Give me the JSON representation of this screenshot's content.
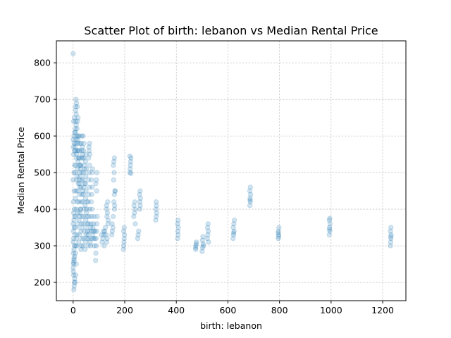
{
  "chart_data": {
    "type": "scatter",
    "title": "Scatter Plot of birth: lebanon vs Median Rental Price",
    "xlabel": "birth: lebanon",
    "ylabel": "Median Rental Price",
    "xlim": [
      -65,
      1290
    ],
    "ylim": [
      150,
      860
    ],
    "xticks": [
      0,
      200,
      400,
      600,
      800,
      1000,
      1200
    ],
    "yticks": [
      200,
      300,
      400,
      500,
      600,
      700,
      800
    ],
    "xtick_labels": [
      "0",
      "200",
      "400",
      "600",
      "800",
      "1000",
      "1200"
    ],
    "ytick_labels": [
      "200",
      "300",
      "400",
      "500",
      "600",
      "700",
      "800"
    ],
    "grid": true,
    "marker_color": "#1f77b4",
    "marker_alpha": 0.2,
    "points": [
      [
        0,
        825
      ],
      [
        3,
        180
      ],
      [
        4,
        190
      ],
      [
        5,
        200
      ],
      [
        6,
        210
      ],
      [
        2,
        220
      ],
      [
        1,
        230
      ],
      [
        0,
        240
      ],
      [
        2,
        250
      ],
      [
        4,
        260
      ],
      [
        6,
        270
      ],
      [
        1,
        280
      ],
      [
        3,
        290
      ],
      [
        5,
        300
      ],
      [
        0,
        310
      ],
      [
        2,
        320
      ],
      [
        7,
        330
      ],
      [
        1,
        340
      ],
      [
        4,
        350
      ],
      [
        0,
        360
      ],
      [
        3,
        370
      ],
      [
        6,
        380
      ],
      [
        2,
        390
      ],
      [
        5,
        400
      ],
      [
        1,
        420
      ],
      [
        4,
        450
      ],
      [
        0,
        480
      ],
      [
        3,
        500
      ],
      [
        6,
        520
      ],
      [
        2,
        550
      ],
      [
        5,
        560
      ],
      [
        1,
        570
      ],
      [
        4,
        580
      ],
      [
        0,
        590
      ],
      [
        3,
        600
      ],
      [
        6,
        610
      ],
      [
        2,
        640
      ],
      [
        5,
        650
      ],
      [
        1,
        255
      ],
      [
        3,
        265
      ],
      [
        8,
        200
      ],
      [
        10,
        220
      ],
      [
        12,
        250
      ],
      [
        9,
        280
      ],
      [
        11,
        300
      ],
      [
        13,
        320
      ],
      [
        8,
        350
      ],
      [
        10,
        380
      ],
      [
        12,
        400
      ],
      [
        9,
        430
      ],
      [
        11,
        450
      ],
      [
        13,
        480
      ],
      [
        8,
        500
      ],
      [
        10,
        520
      ],
      [
        12,
        540
      ],
      [
        9,
        560
      ],
      [
        11,
        580
      ],
      [
        13,
        600
      ],
      [
        8,
        620
      ],
      [
        10,
        640
      ],
      [
        12,
        660
      ],
      [
        9,
        680
      ],
      [
        11,
        700
      ],
      [
        13,
        690
      ],
      [
        10,
        670
      ],
      [
        12,
        630
      ],
      [
        9,
        610
      ],
      [
        11,
        590
      ],
      [
        8,
        570
      ],
      [
        13,
        550
      ],
      [
        15,
        330
      ],
      [
        17,
        360
      ],
      [
        19,
        390
      ],
      [
        16,
        420
      ],
      [
        18,
        450
      ],
      [
        20,
        470
      ],
      [
        15,
        490
      ],
      [
        17,
        510
      ],
      [
        19,
        530
      ],
      [
        16,
        560
      ],
      [
        18,
        580
      ],
      [
        20,
        600
      ],
      [
        15,
        620
      ],
      [
        17,
        640
      ],
      [
        19,
        650
      ],
      [
        16,
        680
      ],
      [
        18,
        590
      ],
      [
        20,
        560
      ],
      [
        22,
        540
      ],
      [
        14,
        300
      ],
      [
        22,
        310
      ],
      [
        24,
        330
      ],
      [
        26,
        350
      ],
      [
        23,
        370
      ],
      [
        25,
        380
      ],
      [
        27,
        400
      ],
      [
        22,
        420
      ],
      [
        24,
        440
      ],
      [
        26,
        460
      ],
      [
        23,
        480
      ],
      [
        25,
        500
      ],
      [
        27,
        520
      ],
      [
        22,
        540
      ],
      [
        24,
        560
      ],
      [
        26,
        580
      ],
      [
        23,
        600
      ],
      [
        25,
        520
      ],
      [
        27,
        490
      ],
      [
        24,
        470
      ],
      [
        26,
        390
      ],
      [
        30,
        290
      ],
      [
        32,
        300
      ],
      [
        34,
        320
      ],
      [
        31,
        340
      ],
      [
        33,
        360
      ],
      [
        35,
        380
      ],
      [
        30,
        400
      ],
      [
        32,
        420
      ],
      [
        34,
        440
      ],
      [
        31,
        460
      ],
      [
        33,
        480
      ],
      [
        35,
        500
      ],
      [
        30,
        520
      ],
      [
        32,
        540
      ],
      [
        34,
        560
      ],
      [
        31,
        580
      ],
      [
        33,
        600
      ],
      [
        35,
        570
      ],
      [
        36,
        550
      ],
      [
        29,
        510
      ],
      [
        38,
        300
      ],
      [
        40,
        320
      ],
      [
        42,
        340
      ],
      [
        39,
        360
      ],
      [
        41,
        380
      ],
      [
        43,
        400
      ],
      [
        38,
        420
      ],
      [
        40,
        440
      ],
      [
        42,
        460
      ],
      [
        39,
        480
      ],
      [
        41,
        500
      ],
      [
        43,
        520
      ],
      [
        38,
        540
      ],
      [
        40,
        560
      ],
      [
        42,
        580
      ],
      [
        39,
        600
      ],
      [
        41,
        540
      ],
      [
        44,
        510
      ],
      [
        45,
        470
      ],
      [
        37,
        450
      ],
      [
        46,
        290
      ],
      [
        48,
        310
      ],
      [
        50,
        330
      ],
      [
        47,
        350
      ],
      [
        49,
        370
      ],
      [
        51,
        390
      ],
      [
        46,
        410
      ],
      [
        48,
        430
      ],
      [
        50,
        450
      ],
      [
        47,
        470
      ],
      [
        49,
        490
      ],
      [
        51,
        510
      ],
      [
        48,
        530
      ],
      [
        50,
        550
      ],
      [
        52,
        400
      ],
      [
        53,
        420
      ],
      [
        54,
        380
      ],
      [
        55,
        360
      ],
      [
        56,
        340
      ],
      [
        53,
        320
      ],
      [
        58,
        300
      ],
      [
        60,
        320
      ],
      [
        62,
        340
      ],
      [
        59,
        360
      ],
      [
        61,
        380
      ],
      [
        63,
        400
      ],
      [
        58,
        420
      ],
      [
        60,
        440
      ],
      [
        62,
        460
      ],
      [
        59,
        480
      ],
      [
        61,
        500
      ],
      [
        63,
        520
      ],
      [
        60,
        540
      ],
      [
        62,
        560
      ],
      [
        61,
        570
      ],
      [
        64,
        580
      ],
      [
        65,
        550
      ],
      [
        57,
        330
      ],
      [
        66,
        310
      ],
      [
        67,
        350
      ],
      [
        68,
        300
      ],
      [
        70,
        320
      ],
      [
        72,
        340
      ],
      [
        69,
        360
      ],
      [
        71,
        380
      ],
      [
        73,
        400
      ],
      [
        70,
        420
      ],
      [
        72,
        440
      ],
      [
        74,
        460
      ],
      [
        71,
        480
      ],
      [
        73,
        500
      ],
      [
        75,
        510
      ],
      [
        76,
        330
      ],
      [
        78,
        320
      ],
      [
        80,
        340
      ],
      [
        77,
        350
      ],
      [
        79,
        360
      ],
      [
        81,
        380
      ],
      [
        82,
        300
      ],
      [
        84,
        320
      ],
      [
        85,
        340
      ],
      [
        87,
        260
      ],
      [
        88,
        280
      ],
      [
        90,
        300
      ],
      [
        89,
        320
      ],
      [
        91,
        340
      ],
      [
        92,
        360
      ],
      [
        93,
        380
      ],
      [
        90,
        480
      ],
      [
        92,
        500
      ],
      [
        91,
        450
      ],
      [
        88,
        470
      ],
      [
        110,
        330
      ],
      [
        112,
        310
      ],
      [
        115,
        320
      ],
      [
        118,
        340
      ],
      [
        120,
        330
      ],
      [
        122,
        340
      ],
      [
        125,
        350
      ],
      [
        120,
        300
      ],
      [
        130,
        310
      ],
      [
        132,
        320
      ],
      [
        128,
        330
      ],
      [
        135,
        360
      ],
      [
        130,
        400
      ],
      [
        133,
        390
      ],
      [
        131,
        380
      ],
      [
        136,
        370
      ],
      [
        129,
        410
      ],
      [
        134,
        420
      ],
      [
        150,
        330
      ],
      [
        152,
        340
      ],
      [
        154,
        350
      ],
      [
        151,
        360
      ],
      [
        155,
        380
      ],
      [
        160,
        400
      ],
      [
        158,
        420
      ],
      [
        160,
        440
      ],
      [
        162,
        450
      ],
      [
        161,
        410
      ],
      [
        157,
        480
      ],
      [
        159,
        500
      ],
      [
        156,
        520
      ],
      [
        158,
        530
      ],
      [
        160,
        540
      ],
      [
        163,
        450
      ],
      [
        195,
        290
      ],
      [
        196,
        300
      ],
      [
        197,
        310
      ],
      [
        198,
        320
      ],
      [
        199,
        330
      ],
      [
        196,
        340
      ],
      [
        198,
        350
      ],
      [
        220,
        500
      ],
      [
        221,
        510
      ],
      [
        222,
        520
      ],
      [
        223,
        530
      ],
      [
        224,
        540
      ],
      [
        220,
        545
      ],
      [
        224,
        498
      ],
      [
        235,
        380
      ],
      [
        238,
        390
      ],
      [
        240,
        400
      ],
      [
        236,
        410
      ],
      [
        239,
        420
      ],
      [
        241,
        360
      ],
      [
        250,
        320
      ],
      [
        252,
        330
      ],
      [
        254,
        340
      ],
      [
        258,
        400
      ],
      [
        260,
        410
      ],
      [
        259,
        420
      ],
      [
        261,
        430
      ],
      [
        257,
        440
      ],
      [
        260,
        450
      ],
      [
        320,
        370
      ],
      [
        322,
        380
      ],
      [
        324,
        390
      ],
      [
        321,
        400
      ],
      [
        323,
        410
      ],
      [
        322,
        420
      ],
      [
        405,
        320
      ],
      [
        407,
        330
      ],
      [
        406,
        340
      ],
      [
        408,
        350
      ],
      [
        405,
        360
      ],
      [
        407,
        370
      ],
      [
        475,
        290
      ],
      [
        476,
        300
      ],
      [
        477,
        305
      ],
      [
        478,
        310
      ],
      [
        475,
        295
      ],
      [
        500,
        285
      ],
      [
        502,
        295
      ],
      [
        504,
        305
      ],
      [
        501,
        315
      ],
      [
        503,
        325
      ],
      [
        505,
        300
      ],
      [
        520,
        320
      ],
      [
        522,
        330
      ],
      [
        524,
        340
      ],
      [
        521,
        350
      ],
      [
        523,
        360
      ],
      [
        525,
        310
      ],
      [
        620,
        320
      ],
      [
        622,
        330
      ],
      [
        624,
        340
      ],
      [
        621,
        350
      ],
      [
        623,
        360
      ],
      [
        625,
        370
      ],
      [
        622,
        335
      ],
      [
        685,
        410
      ],
      [
        687,
        420
      ],
      [
        686,
        430
      ],
      [
        688,
        440
      ],
      [
        685,
        450
      ],
      [
        687,
        460
      ],
      [
        686,
        425
      ],
      [
        795,
        320
      ],
      [
        797,
        330
      ],
      [
        796,
        340
      ],
      [
        798,
        350
      ],
      [
        795,
        335
      ],
      [
        797,
        325
      ],
      [
        993,
        330
      ],
      [
        995,
        340
      ],
      [
        994,
        350
      ],
      [
        996,
        360
      ],
      [
        993,
        370
      ],
      [
        995,
        375
      ],
      [
        994,
        345
      ],
      [
        1230,
        300
      ],
      [
        1231,
        310
      ],
      [
        1232,
        320
      ],
      [
        1233,
        330
      ],
      [
        1230,
        340
      ],
      [
        1232,
        350
      ],
      [
        1231,
        325
      ]
    ]
  }
}
